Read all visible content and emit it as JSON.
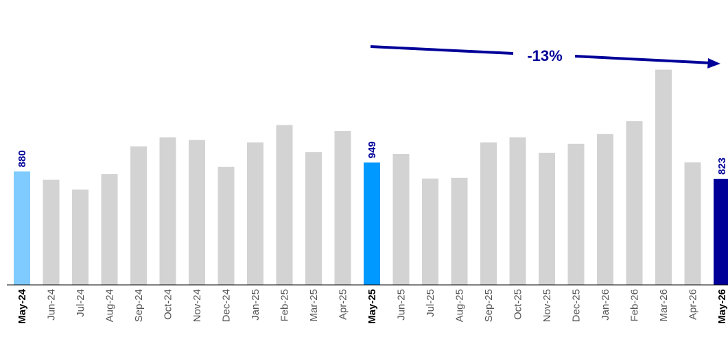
{
  "chart_data": {
    "type": "bar",
    "categories": [
      "May-24",
      "Jun-24",
      "Jul-24",
      "Aug-24",
      "Sep-24",
      "Oct-24",
      "Nov-24",
      "Dec-24",
      "Jan-25",
      "Feb-25",
      "Mar-25",
      "Apr-25",
      "May-25",
      "Jun-25",
      "Jul-25",
      "Aug-25",
      "Sep-25",
      "Oct-25",
      "Nov-25",
      "Dec-25",
      "Jan-26",
      "Feb-26",
      "Mar-26",
      "Apr-26",
      "May-26"
    ],
    "values": [
      880,
      815,
      740,
      860,
      1075,
      1145,
      1125,
      915,
      1105,
      1240,
      1030,
      1195,
      949,
      1015,
      825,
      830,
      1105,
      1145,
      1025,
      1095,
      1170,
      1270,
      1670,
      950,
      823
    ],
    "highlight_colors": {
      "May-24": "#7FCBFF",
      "May-25": "#0099FF",
      "May-26": "#000099"
    },
    "default_color": "#D3D3D3",
    "data_labels": [
      {
        "category": "May-24",
        "text": "880"
      },
      {
        "category": "May-25",
        "text": "949"
      },
      {
        "category": "May-26",
        "text": "823"
      }
    ],
    "annotation": {
      "text": "-13%",
      "from": "May-25",
      "to": "May-26",
      "color": "#000099"
    },
    "ylim": [
      0,
      1700
    ],
    "title": "",
    "xlabel": "",
    "ylabel": "",
    "grid": false
  }
}
